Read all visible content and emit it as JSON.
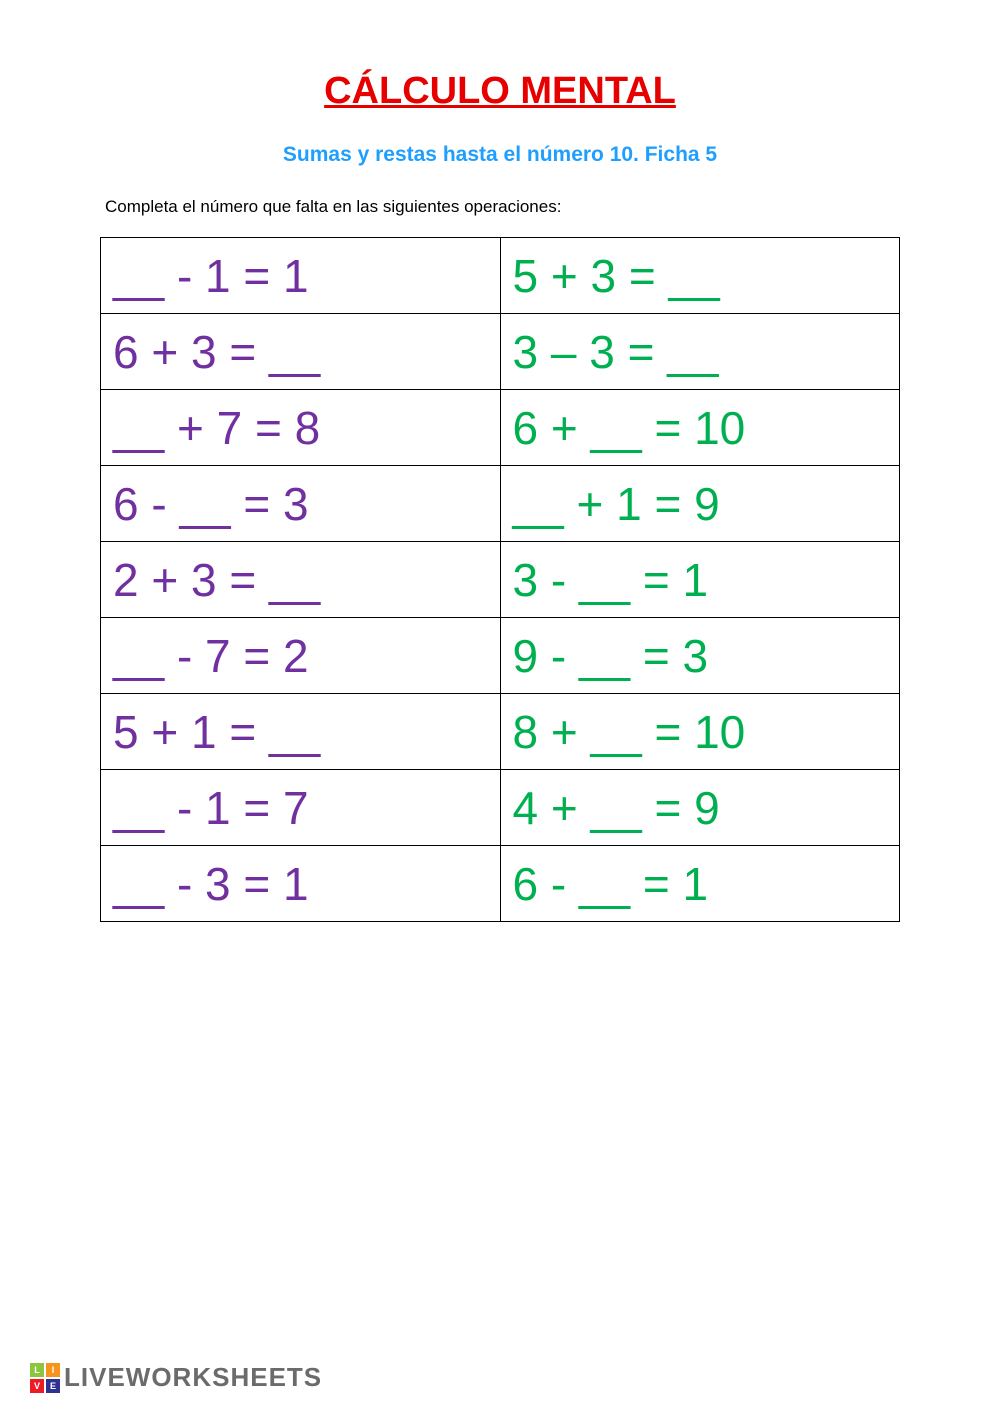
{
  "title": {
    "text": "CÁLCULO MENTAL",
    "color": "#e60000",
    "fontsize": 38
  },
  "subtitle": {
    "text": "Sumas y restas hasta el número 10. Ficha 5",
    "color": "#1e9fff",
    "fontsize": 21
  },
  "instructions": {
    "text": "Completa el número que falta en las siguientes operaciones:",
    "color": "#000000",
    "fontsize": 17
  },
  "table": {
    "border_color": "#000000",
    "left_column_color": "#7030a0",
    "right_column_color": "#00b050",
    "cell_fontsize": 46,
    "rows": [
      {
        "left": "__ - 1 = 1",
        "right": "5 + 3 = __"
      },
      {
        "left": "6 + 3 = __",
        "right": "3 – 3 = __"
      },
      {
        "left": "__ + 7 = 8",
        "right": "6 + __ = 10"
      },
      {
        "left": "6 - __ = 3",
        "right": "__ + 1 = 9"
      },
      {
        "left": "2 + 3 = __",
        "right": "3 - __ = 1"
      },
      {
        "left": "__ - 7 = 2",
        "right": "9 - __ = 3"
      },
      {
        "left": "5 + 1 = __",
        "right": "8 + __ = 10"
      },
      {
        "left": "__ - 1 = 7",
        "right": "4 + __ = 9"
      },
      {
        "left": "__ - 3 = 1",
        "right": "6 - __ = 1"
      }
    ]
  },
  "footer": {
    "brand_text": "LIVEWORKSHEETS",
    "brand_color": "#6b6b6b",
    "squares": [
      {
        "letter": "L",
        "bg": "#8cc63f"
      },
      {
        "letter": "I",
        "bg": "#f7941e"
      },
      {
        "letter": "V",
        "bg": "#ed1c24"
      },
      {
        "letter": "E",
        "bg": "#2e3192"
      }
    ]
  }
}
